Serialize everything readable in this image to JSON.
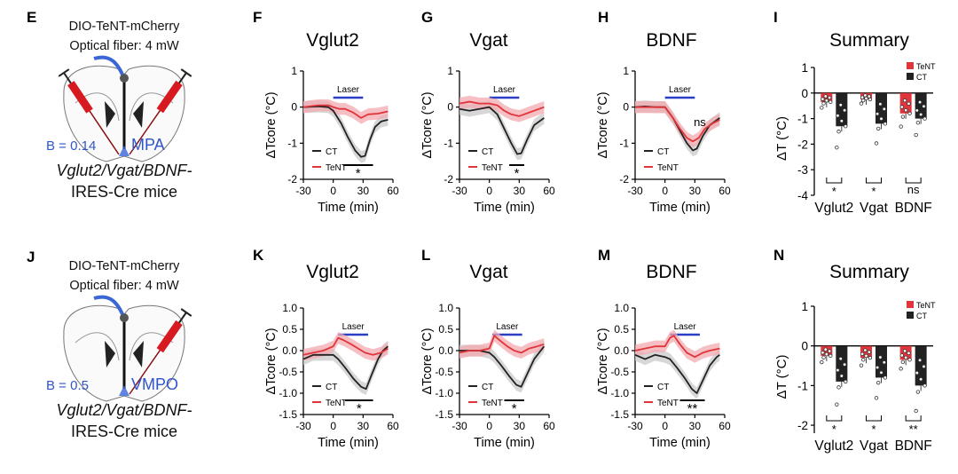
{
  "colors": {
    "ct": "#222222",
    "tent": "#e0353a",
    "tent_band": "#f3aab0",
    "ct_band": "#c9c9c9",
    "laser": "#2b3fc4",
    "blue_label": "#2f55c8",
    "fiber": "#3a66d8",
    "syringe": "#d71920"
  },
  "rows": [
    {
      "schematic": {
        "letter": "E",
        "construct": "DIO-TeNT-mCherry",
        "fiber": "Optical fiber: 4 mW",
        "bregma": "B = 0.14",
        "region": "MPA",
        "mice_line1": "Vglut2/Vgat/BDNF-",
        "mice_line2": "IRES-Cre mice"
      },
      "traces": [
        {
          "letter": "F",
          "title": "Vglut2",
          "ylim": [
            -2,
            1
          ],
          "yticks": [
            1,
            0,
            -1,
            -2
          ],
          "xticks": [
            -30,
            0,
            30,
            60
          ],
          "ylabel": "ΔTcore (°C)",
          "xlabel": "Time (min)",
          "laser_label": "Laser",
          "laser": [
            0,
            30
          ],
          "legend": [
            "CT",
            "TeNT"
          ],
          "sig": "*",
          "sig_range": [
            10,
            40
          ],
          "ct": [
            [
              -30,
              0
            ],
            [
              -15,
              0.02
            ],
            [
              -5,
              0
            ],
            [
              0,
              -0.1
            ],
            [
              8,
              -0.45
            ],
            [
              15,
              -0.85
            ],
            [
              22,
              -1.2
            ],
            [
              28,
              -1.38
            ],
            [
              32,
              -1.35
            ],
            [
              37,
              -0.9
            ],
            [
              42,
              -0.55
            ],
            [
              48,
              -0.4
            ],
            [
              55,
              -0.35
            ]
          ],
          "tent": [
            [
              -30,
              0
            ],
            [
              -15,
              0.05
            ],
            [
              -5,
              0.05
            ],
            [
              0,
              0
            ],
            [
              6,
              -0.05
            ],
            [
              12,
              -0.05
            ],
            [
              20,
              -0.15
            ],
            [
              28,
              -0.3
            ],
            [
              35,
              -0.2
            ],
            [
              45,
              -0.18
            ],
            [
              55,
              -0.12
            ]
          ]
        },
        {
          "letter": "G",
          "title": "Vgat",
          "ylim": [
            -2,
            1
          ],
          "yticks": [
            1,
            0,
            -1,
            -2
          ],
          "xticks": [
            -30,
            0,
            30,
            60
          ],
          "ylabel": "ΔTcore (°C)",
          "xlabel": "Time (min)",
          "laser_label": "Laser",
          "laser": [
            0,
            30
          ],
          "legend": [
            "CT",
            "TeNT"
          ],
          "sig": "*",
          "sig_range": [
            20,
            35
          ],
          "ct": [
            [
              -30,
              -0.05
            ],
            [
              -20,
              -0.1
            ],
            [
              -10,
              -0.05
            ],
            [
              0,
              0
            ],
            [
              8,
              -0.2
            ],
            [
              15,
              -0.6
            ],
            [
              22,
              -1.0
            ],
            [
              28,
              -1.3
            ],
            [
              32,
              -1.28
            ],
            [
              38,
              -0.9
            ],
            [
              45,
              -0.5
            ],
            [
              55,
              -0.3
            ]
          ],
          "tent": [
            [
              -30,
              0.1
            ],
            [
              -20,
              0.15
            ],
            [
              -10,
              0.1
            ],
            [
              0,
              0.1
            ],
            [
              8,
              0.05
            ],
            [
              15,
              -0.1
            ],
            [
              22,
              -0.2
            ],
            [
              30,
              -0.25
            ],
            [
              40,
              -0.15
            ],
            [
              50,
              -0.05
            ],
            [
              55,
              0
            ]
          ]
        },
        {
          "letter": "H",
          "title": "BDNF",
          "ylim": [
            -2,
            1
          ],
          "yticks": [
            1,
            0,
            -1,
            -2
          ],
          "xticks": [
            -30,
            0,
            30,
            60
          ],
          "ylabel": "ΔTcore (°C)",
          "xlabel": "Time (min)",
          "laser_label": "Laser",
          "laser": [
            0,
            30
          ],
          "legend": [
            "CT",
            "TeNT"
          ],
          "sig": "ns",
          "sig_range": null,
          "ct": [
            [
              -30,
              0
            ],
            [
              -20,
              0.02
            ],
            [
              -10,
              0
            ],
            [
              0,
              0
            ],
            [
              8,
              -0.3
            ],
            [
              15,
              -0.65
            ],
            [
              22,
              -1.0
            ],
            [
              28,
              -1.2
            ],
            [
              32,
              -1.15
            ],
            [
              38,
              -0.8
            ],
            [
              45,
              -0.5
            ],
            [
              55,
              -0.3
            ]
          ],
          "tent": [
            [
              -30,
              0
            ],
            [
              -20,
              0
            ],
            [
              -10,
              0
            ],
            [
              0,
              0
            ],
            [
              8,
              -0.3
            ],
            [
              15,
              -0.6
            ],
            [
              22,
              -0.85
            ],
            [
              28,
              -0.95
            ],
            [
              34,
              -0.85
            ],
            [
              40,
              -0.6
            ],
            [
              48,
              -0.45
            ],
            [
              55,
              -0.35
            ]
          ]
        }
      ],
      "summary": {
        "letter": "I",
        "title": "Summary",
        "ylabel": "ΔT (°C)",
        "ylim": [
          -4,
          1
        ],
        "yticks": [
          1,
          0,
          -1,
          -2,
          -3,
          -4
        ],
        "legend": [
          "TeNT",
          "CT"
        ],
        "categories": [
          "Vglut2",
          "Vgat",
          "BDNF"
        ],
        "tent": [
          -0.35,
          -0.25,
          -0.8
        ],
        "ct": [
          -1.3,
          -1.2,
          -1.0
        ],
        "sig": [
          "*",
          "*",
          "ns"
        ]
      }
    },
    {
      "schematic": {
        "letter": "J",
        "construct": "DIO-TeNT-mCherry",
        "fiber": "Optical fiber: 4 mW",
        "bregma": "B = 0.5",
        "region": "VMPO",
        "mice_line1": "Vglut2/Vgat/BDNF-",
        "mice_line2": "IRES-Cre mice"
      },
      "traces": [
        {
          "letter": "K",
          "title": "Vglut2",
          "ylim": [
            -1.5,
            1.0
          ],
          "yticks": [
            1.0,
            0.5,
            0.0,
            -0.5,
            -1.0,
            -1.5
          ],
          "xticks": [
            -30,
            0,
            30,
            60
          ],
          "ylabel": "ΔTcore (°C)",
          "xlabel": "Time (min)",
          "laser_label": "Laser",
          "laser": [
            5,
            35
          ],
          "legend": [
            "CT",
            "TeNT"
          ],
          "sig": "*",
          "sig_range": [
            12,
            40
          ],
          "ct": [
            [
              -30,
              -0.2
            ],
            [
              -20,
              -0.1
            ],
            [
              -10,
              -0.1
            ],
            [
              0,
              -0.1
            ],
            [
              5,
              -0.2
            ],
            [
              12,
              -0.4
            ],
            [
              20,
              -0.65
            ],
            [
              28,
              -0.85
            ],
            [
              33,
              -0.9
            ],
            [
              38,
              -0.6
            ],
            [
              45,
              -0.2
            ],
            [
              50,
              0
            ],
            [
              55,
              0.1
            ]
          ],
          "tent": [
            [
              -30,
              -0.1
            ],
            [
              -20,
              -0.05
            ],
            [
              -10,
              0
            ],
            [
              0,
              0.1
            ],
            [
              5,
              0.3
            ],
            [
              10,
              0.25
            ],
            [
              18,
              0.15
            ],
            [
              25,
              0.05
            ],
            [
              32,
              -0.05
            ],
            [
              40,
              -0.1
            ],
            [
              48,
              -0.05
            ],
            [
              55,
              0.05
            ]
          ]
        },
        {
          "letter": "L",
          "title": "Vgat",
          "ylim": [
            -1.5,
            1.0
          ],
          "yticks": [
            1.0,
            0.5,
            0.0,
            -0.5,
            -1.0,
            -1.5
          ],
          "xticks": [
            -30,
            0,
            30,
            60
          ],
          "ylabel": "ΔTcore (°C)",
          "xlabel": "Time (min)",
          "laser_label": "Laser",
          "laser": [
            3,
            33
          ],
          "legend": [
            "CT",
            "TeNT"
          ],
          "sig": "*",
          "sig_range": [
            15,
            35
          ],
          "ct": [
            [
              -30,
              0
            ],
            [
              -20,
              0
            ],
            [
              -10,
              0
            ],
            [
              0,
              -0.05
            ],
            [
              5,
              -0.15
            ],
            [
              12,
              -0.35
            ],
            [
              20,
              -0.6
            ],
            [
              27,
              -0.8
            ],
            [
              32,
              -0.85
            ],
            [
              38,
              -0.55
            ],
            [
              45,
              -0.2
            ],
            [
              55,
              0.1
            ]
          ],
          "tent": [
            [
              -30,
              -0.05
            ],
            [
              -20,
              0
            ],
            [
              -10,
              0
            ],
            [
              0,
              0.05
            ],
            [
              5,
              0.35
            ],
            [
              10,
              0.25
            ],
            [
              18,
              0.1
            ],
            [
              25,
              0
            ],
            [
              32,
              -0.05
            ],
            [
              40,
              0.05
            ],
            [
              48,
              0.1
            ],
            [
              55,
              0.15
            ]
          ]
        },
        {
          "letter": "M",
          "title": "BDNF",
          "ylim": [
            -1.5,
            1.0
          ],
          "yticks": [
            1.0,
            0.5,
            0.0,
            -0.5,
            -1.0,
            -1.5
          ],
          "xticks": [
            -30,
            0,
            30,
            60
          ],
          "ylabel": "ΔTcore (°C)",
          "xlabel": "Time (min)",
          "laser_label": "Laser",
          "laser": [
            5,
            35
          ],
          "legend": [
            "CT",
            "TeNT"
          ],
          "sig": "**",
          "sig_range": [
            15,
            40
          ],
          "ct": [
            [
              -30,
              -0.1
            ],
            [
              -20,
              -0.2
            ],
            [
              -10,
              -0.1
            ],
            [
              0,
              -0.15
            ],
            [
              5,
              -0.2
            ],
            [
              12,
              -0.4
            ],
            [
              20,
              -0.65
            ],
            [
              27,
              -0.9
            ],
            [
              32,
              -1.0
            ],
            [
              38,
              -0.7
            ],
            [
              45,
              -0.35
            ],
            [
              52,
              -0.15
            ],
            [
              55,
              -0.1
            ]
          ],
          "tent": [
            [
              -30,
              0
            ],
            [
              -20,
              0.05
            ],
            [
              -10,
              0.1
            ],
            [
              0,
              0.1
            ],
            [
              5,
              0.3
            ],
            [
              9,
              0.35
            ],
            [
              15,
              0.15
            ],
            [
              22,
              -0.05
            ],
            [
              30,
              -0.15
            ],
            [
              38,
              -0.05
            ],
            [
              45,
              0
            ],
            [
              55,
              0.05
            ]
          ]
        }
      ],
      "summary": {
        "letter": "N",
        "title": "Summary",
        "ylabel": "ΔT (°C)",
        "ylim": [
          -2.2,
          1
        ],
        "yticks": [
          1,
          0,
          -1,
          -2
        ],
        "legend": [
          "TeNT",
          "CT"
        ],
        "categories": [
          "Vglut2",
          "Vgat",
          "BDNF"
        ],
        "tent": [
          -0.25,
          -0.3,
          -0.35
        ],
        "ct": [
          -0.9,
          -0.8,
          -1.0
        ],
        "sig": [
          "*",
          "*",
          "**"
        ]
      }
    }
  ],
  "chart_data": [
    {
      "type": "line",
      "panel": "F",
      "title": "Vglut2",
      "xlabel": "Time (min)",
      "ylabel": "ΔTcore (°C)",
      "xlim": [
        -30,
        60
      ],
      "ylim": [
        -2,
        1
      ],
      "series": [
        {
          "name": "CT"
        },
        {
          "name": "TeNT"
        }
      ]
    },
    {
      "type": "line",
      "panel": "G",
      "title": "Vgat",
      "xlabel": "Time (min)",
      "ylabel": "ΔTcore (°C)",
      "xlim": [
        -30,
        60
      ],
      "ylim": [
        -2,
        1
      ],
      "series": [
        {
          "name": "CT"
        },
        {
          "name": "TeNT"
        }
      ]
    },
    {
      "type": "line",
      "panel": "H",
      "title": "BDNF",
      "xlabel": "Time (min)",
      "ylabel": "ΔTcore (°C)",
      "xlim": [
        -30,
        60
      ],
      "ylim": [
        -2,
        1
      ],
      "series": [
        {
          "name": "CT"
        },
        {
          "name": "TeNT"
        }
      ]
    },
    {
      "type": "bar",
      "panel": "I",
      "title": "Summary",
      "categories": [
        "Vglut2",
        "Vgat",
        "BDNF"
      ],
      "series": [
        {
          "name": "TeNT",
          "values": [
            -0.35,
            -0.25,
            -0.8
          ]
        },
        {
          "name": "CT",
          "values": [
            -1.3,
            -1.2,
            -1.0
          ]
        }
      ],
      "ylabel": "ΔT (°C)",
      "ylim": [
        -4,
        1
      ]
    },
    {
      "type": "line",
      "panel": "K",
      "title": "Vglut2",
      "xlabel": "Time (min)",
      "ylabel": "ΔTcore (°C)",
      "xlim": [
        -30,
        60
      ],
      "ylim": [
        -1.5,
        1.0
      ],
      "series": [
        {
          "name": "CT"
        },
        {
          "name": "TeNT"
        }
      ]
    },
    {
      "type": "line",
      "panel": "L",
      "title": "Vgat",
      "xlabel": "Time (min)",
      "ylabel": "ΔTcore (°C)",
      "xlim": [
        -30,
        60
      ],
      "ylim": [
        -1.5,
        1.0
      ],
      "series": [
        {
          "name": "CT"
        },
        {
          "name": "TeNT"
        }
      ]
    },
    {
      "type": "line",
      "panel": "M",
      "title": "BDNF",
      "xlabel": "Time (min)",
      "ylabel": "ΔTcore (°C)",
      "xlim": [
        -30,
        60
      ],
      "ylim": [
        -1.5,
        1.0
      ],
      "series": [
        {
          "name": "CT"
        },
        {
          "name": "TeNT"
        }
      ]
    },
    {
      "type": "bar",
      "panel": "N",
      "title": "Summary",
      "categories": [
        "Vglut2",
        "Vgat",
        "BDNF"
      ],
      "series": [
        {
          "name": "TeNT",
          "values": [
            -0.25,
            -0.3,
            -0.35
          ]
        },
        {
          "name": "CT",
          "values": [
            -0.9,
            -0.8,
            -1.0
          ]
        }
      ],
      "ylabel": "ΔT (°C)",
      "ylim": [
        -2.2,
        1
      ]
    }
  ]
}
